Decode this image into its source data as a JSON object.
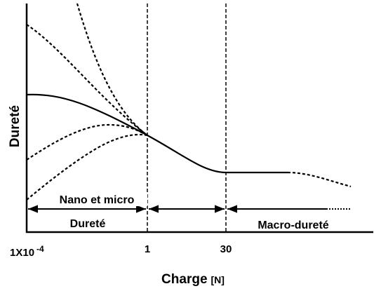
{
  "axes": {
    "y_label": "Dureté",
    "x_label": "Charge",
    "x_unit": "[N]",
    "x_ticks": [
      {
        "base": "1X10",
        "exponent": "-4"
      },
      {
        "base": "1"
      },
      {
        "base": "30"
      }
    ]
  },
  "regions": {
    "nano_micro_top": "Nano et micro",
    "nano_micro_bottom": "Dureté",
    "macro": "Macro-dureté"
  }
}
